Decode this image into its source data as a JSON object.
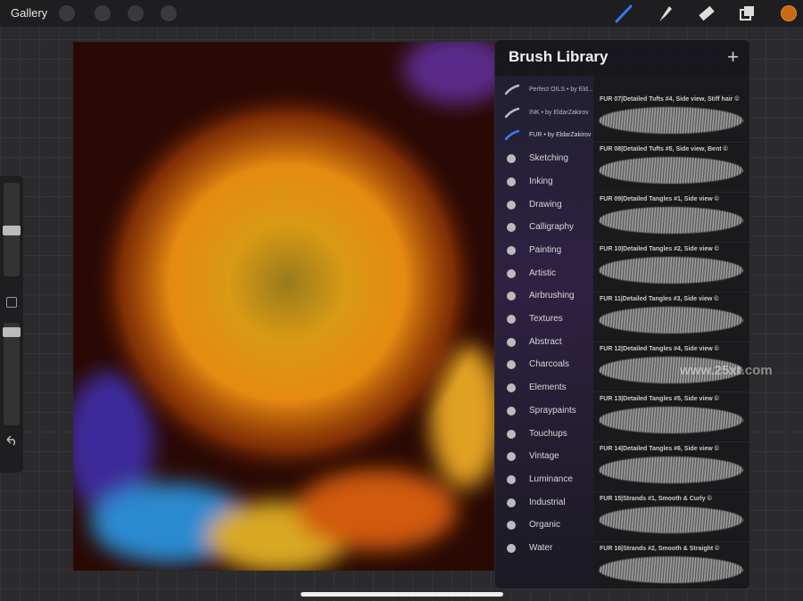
{
  "toolbar": {
    "gallery": "Gallery"
  },
  "watermark": "www.25xt.com",
  "brush_library": {
    "title": "Brush Library",
    "categories": [
      "Perfect OILS • by Eld...",
      "INK • by EldarZakirov",
      "FUR • by EldarZakirov",
      "Sketching",
      "Inking",
      "Drawing",
      "Calligraphy",
      "Painting",
      "Artistic",
      "Airbrushing",
      "Textures",
      "Abstract",
      "Charcoals",
      "Elements",
      "Spraypaints",
      "Touchups",
      "Vintage",
      "Luminance",
      "Industrial",
      "Organic",
      "Water"
    ],
    "brushes": [
      "FUR 07|Detailed Tufts #4, Side view, Stiff hair ©",
      "FUR 08|Detailed Tufts #5, Side view, Bent ©",
      "FUR 09|Detailed Tangles #1, Side view ©",
      "FUR 10|Detailed Tangles #2, Side view ©",
      "FUR 11|Detailed Tangles #3, Side view ©",
      "FUR 12|Detailed Tangles #4, Side view ©",
      "FUR 13|Detailed Tangles #5, Side view ©",
      "FUR 14|Detailed Tangles #6, Side view ©",
      "FUR 15|Strands #1, Smooth & Curly ©",
      "FUR 16|Strands #2, Smooth & Straight ©"
    ]
  }
}
